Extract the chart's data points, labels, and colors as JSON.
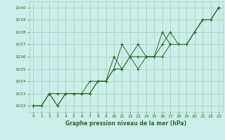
{
  "title": "Graphe pression niveau de la mer (hPa)",
  "background_color": "#cceee8",
  "grid_color": "#b0c8c4",
  "line_color": "#2d6a2d",
  "xlim": [
    -0.5,
    23.5
  ],
  "ylim": [
    1031.5,
    1040.5
  ],
  "yticks": [
    1032,
    1033,
    1034,
    1035,
    1036,
    1037,
    1038,
    1039,
    1040
  ],
  "xticks": [
    0,
    1,
    2,
    3,
    4,
    5,
    6,
    7,
    8,
    9,
    10,
    11,
    12,
    13,
    14,
    15,
    16,
    17,
    18,
    19,
    20,
    21,
    22,
    23
  ],
  "series": [
    [
      1032.0,
      1032.0,
      1033.0,
      1032.0,
      1033.0,
      1033.0,
      1033.0,
      1033.0,
      1034.0,
      1034.0,
      1036.0,
      1035.0,
      1036.0,
      1037.0,
      1036.0,
      1036.0,
      1037.0,
      1038.0,
      1037.0,
      1037.0,
      1038.0,
      1039.0,
      1039.0,
      1040.0
    ],
    [
      1032.0,
      1032.0,
      1033.0,
      1033.0,
      1033.0,
      1033.0,
      1033.0,
      1033.0,
      1034.0,
      1034.0,
      1035.0,
      1035.0,
      1036.0,
      1036.0,
      1036.0,
      1036.0,
      1036.0,
      1037.0,
      1037.0,
      1037.0,
      1038.0,
      1039.0,
      1039.0,
      1040.0
    ],
    [
      1032.0,
      1032.0,
      1033.0,
      1032.0,
      1033.0,
      1033.0,
      1033.0,
      1034.0,
      1034.0,
      1034.0,
      1035.0,
      1037.0,
      1036.0,
      1035.0,
      1036.0,
      1036.0,
      1038.0,
      1037.0,
      1037.0,
      1037.0,
      1038.0,
      1039.0,
      1039.0,
      1040.0
    ]
  ]
}
